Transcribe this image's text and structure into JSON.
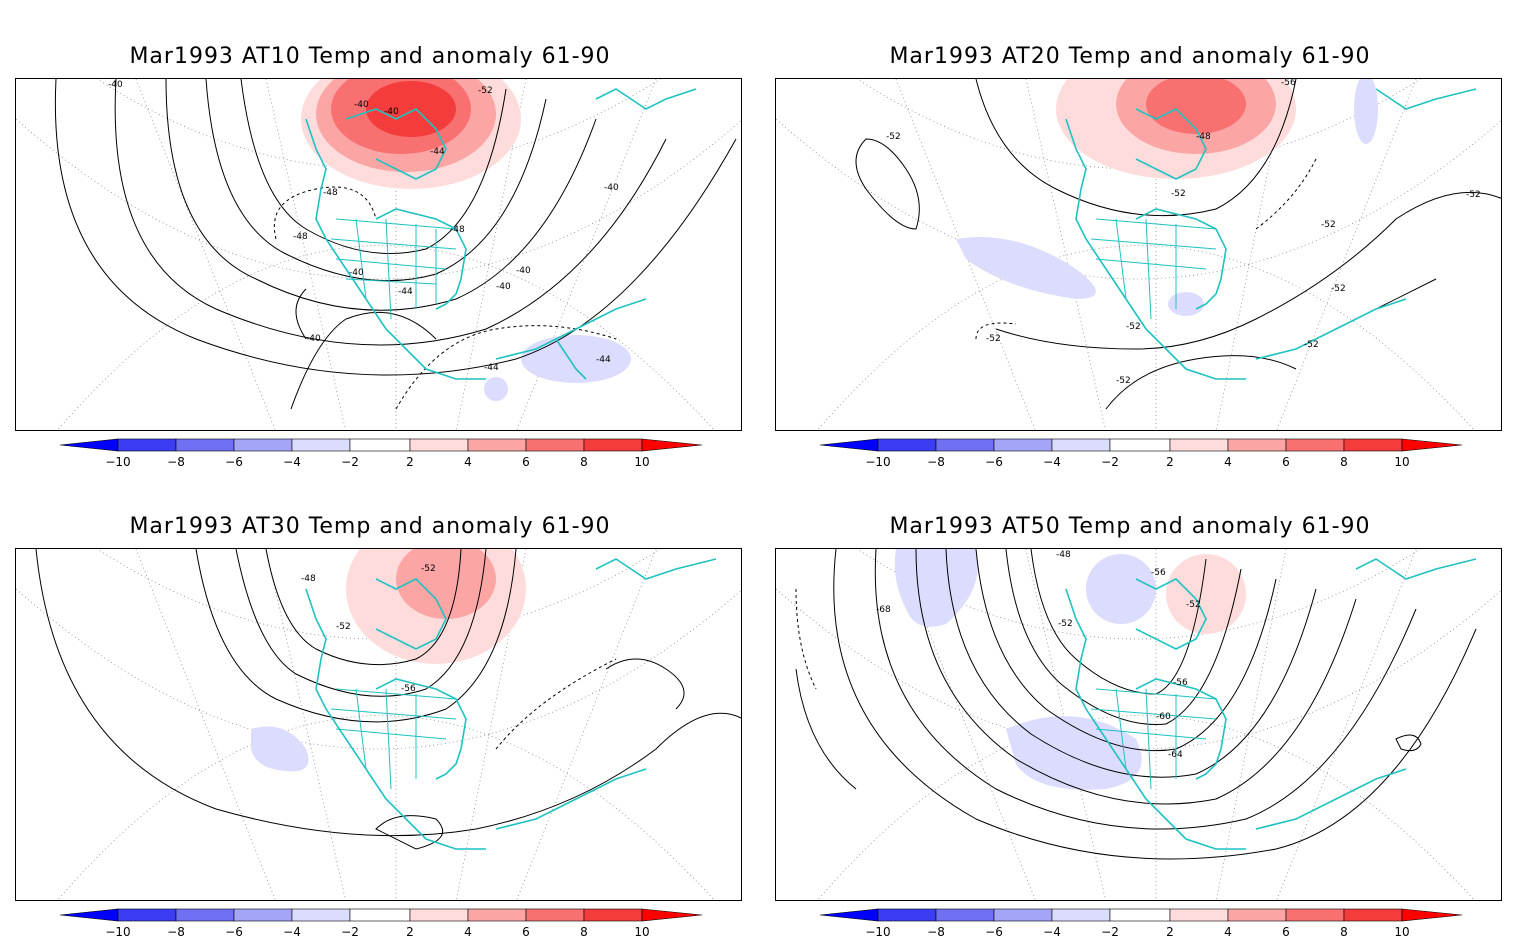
{
  "colors": {
    "coast": "#1fc2c2",
    "contour": "#000000",
    "warm": [
      "#ffdcdc",
      "#fba5a5",
      "#f87070",
      "#f53c3c",
      "#ff0000"
    ],
    "cool": [
      "#dcdcff",
      "#a5a5f8",
      "#7070f5",
      "#3c3cf5",
      "#0000ff"
    ]
  },
  "colorbar": {
    "ticks": [
      "−10",
      "−8",
      "−6",
      "−4",
      "−2",
      "2",
      "4",
      "6",
      "8",
      "10"
    ]
  },
  "panels": [
    {
      "title": "Mar1993 AT10 Temp and anomaly 61-90",
      "contour_labels": [
        "-40",
        "-40",
        "-40",
        "-52",
        "-44",
        "-48",
        "-48",
        "-48",
        "-40",
        "-40",
        "-44",
        "-40",
        "-40",
        "-40",
        "-44",
        "-44"
      ]
    },
    {
      "title": "Mar1993 AT20 Temp and anomaly 61-90",
      "contour_labels": [
        "-52",
        "-56",
        "-48",
        "-52",
        "-52",
        "-52",
        "-52",
        "-52",
        "-52",
        "-52",
        "-52"
      ]
    },
    {
      "title": "Mar1993 AT30 Temp and anomaly 61-90",
      "contour_labels": [
        "-48",
        "-52",
        "-52",
        "-56"
      ]
    },
    {
      "title": "Mar1993 AT50 Temp and anomaly 61-90",
      "contour_labels": [
        "-68",
        "-48",
        "-56",
        "-52",
        "-52",
        "-56",
        "-60",
        "-64"
      ]
    }
  ]
}
